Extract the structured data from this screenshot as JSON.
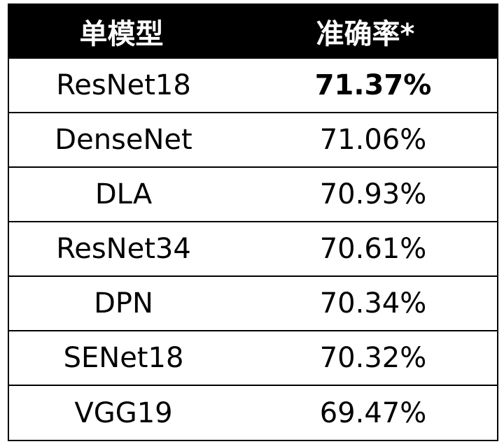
{
  "chart_data": {
    "type": "table",
    "columns": [
      "单模型",
      "准确率*"
    ],
    "rows": [
      {
        "model": "ResNet18",
        "accuracy": "71.37%",
        "highlight": true
      },
      {
        "model": "DenseNet",
        "accuracy": "71.06%",
        "highlight": false
      },
      {
        "model": "DLA",
        "accuracy": "70.93%",
        "highlight": false
      },
      {
        "model": "ResNet34",
        "accuracy": "70.61%",
        "highlight": false
      },
      {
        "model": "DPN",
        "accuracy": "70.34%",
        "highlight": false
      },
      {
        "model": "SENet18",
        "accuracy": "70.32%",
        "highlight": false
      },
      {
        "model": "VGG19",
        "accuracy": "69.47%",
        "highlight": false
      }
    ]
  }
}
